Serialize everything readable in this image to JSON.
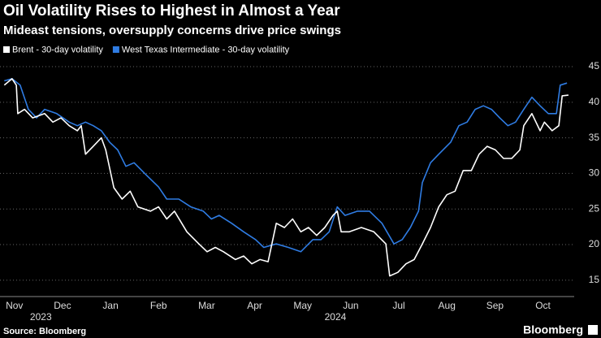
{
  "chart_data": {
    "type": "line",
    "title": "Oil Volatility Rises to Highest in Almost a Year",
    "subtitle": "Mideast tensions, oversupply concerns drive price swings",
    "source": "Source: Bloomberg",
    "brand": "Bloomberg",
    "grid": true,
    "xlim": [
      -0.3,
      11.65
    ],
    "xticks": [
      {
        "value": 0,
        "label": "Nov"
      },
      {
        "value": 1,
        "label": "Dec"
      },
      {
        "value": 2,
        "label": "Jan"
      },
      {
        "value": 3,
        "label": "Feb"
      },
      {
        "value": 4,
        "label": "Mar"
      },
      {
        "value": 5,
        "label": "Apr"
      },
      {
        "value": 6,
        "label": "May"
      },
      {
        "value": 7,
        "label": "Jun"
      },
      {
        "value": 8,
        "label": "Jul"
      },
      {
        "value": 9,
        "label": "Aug"
      },
      {
        "value": 10,
        "label": "Sep"
      },
      {
        "value": 11,
        "label": "Oct"
      }
    ],
    "xticks_secondary": [
      {
        "value": 0.55,
        "label": "2023"
      },
      {
        "value": 6.68,
        "label": "2024"
      }
    ],
    "ylim": [
      12.7,
      45.8
    ],
    "yticks": [
      15,
      20,
      25,
      30,
      35,
      40,
      45
    ],
    "series": [
      {
        "name": "Brent - 30-day volatility",
        "color": "#ffffff",
        "x": [
          -0.21,
          -0.05,
          0.04,
          0.07,
          0.21,
          0.38,
          0.63,
          0.8,
          0.97,
          1.14,
          1.31,
          1.39,
          1.48,
          1.64,
          1.81,
          1.9,
          2.07,
          2.24,
          2.41,
          2.57,
          2.83,
          3.0,
          3.17,
          3.33,
          3.59,
          3.84,
          4.01,
          4.18,
          4.35,
          4.6,
          4.77,
          4.94,
          5.11,
          5.28,
          5.45,
          5.62,
          5.79,
          5.96,
          6.12,
          6.29,
          6.46,
          6.63,
          6.72,
          6.8,
          6.97,
          7.22,
          7.48,
          7.73,
          7.81,
          7.98,
          8.15,
          8.32,
          8.49,
          8.66,
          8.83,
          9.0,
          9.17,
          9.34,
          9.51,
          9.67,
          9.84,
          10.01,
          10.18,
          10.35,
          10.52,
          10.6,
          10.77,
          10.94,
          11.03,
          11.19,
          11.33,
          11.4,
          11.53
        ],
        "values": [
          42.4,
          43.3,
          42.4,
          38.4,
          39.0,
          37.8,
          38.4,
          37.2,
          37.8,
          36.7,
          36.0,
          36.7,
          32.7,
          33.8,
          35.0,
          33.3,
          28.0,
          26.4,
          27.5,
          25.3,
          24.7,
          25.3,
          23.6,
          24.7,
          21.8,
          20.1,
          19.0,
          19.6,
          19.0,
          17.9,
          18.4,
          17.3,
          17.9,
          17.6,
          23.0,
          22.4,
          23.6,
          21.8,
          22.4,
          21.3,
          22.4,
          24.1,
          24.7,
          21.8,
          21.8,
          22.4,
          21.8,
          20.1,
          15.6,
          16.1,
          17.3,
          17.9,
          20.1,
          22.4,
          25.3,
          27.0,
          27.5,
          30.4,
          30.4,
          32.7,
          33.8,
          33.3,
          32.1,
          32.1,
          33.3,
          36.7,
          38.4,
          36.0,
          37.2,
          36.0,
          36.7,
          40.9,
          41.0
        ]
      },
      {
        "name": "West Texas Intermediate - 30-day volatility",
        "color": "#2f7ce3",
        "x": [
          -0.21,
          -0.05,
          0.12,
          0.29,
          0.46,
          0.63,
          0.88,
          1.14,
          1.31,
          1.48,
          1.64,
          1.81,
          1.98,
          2.15,
          2.32,
          2.49,
          2.74,
          3.0,
          3.17,
          3.42,
          3.67,
          3.93,
          4.1,
          4.26,
          4.52,
          4.77,
          5.02,
          5.19,
          5.45,
          5.7,
          5.96,
          6.21,
          6.38,
          6.55,
          6.72,
          6.88,
          7.14,
          7.39,
          7.65,
          7.9,
          8.07,
          8.24,
          8.41,
          8.49,
          8.66,
          8.83,
          9.08,
          9.25,
          9.42,
          9.59,
          9.76,
          9.93,
          10.1,
          10.27,
          10.43,
          10.6,
          10.77,
          10.94,
          11.11,
          11.28,
          11.36,
          11.5
        ],
        "values": [
          43.0,
          43.3,
          42.4,
          39.0,
          37.8,
          39.0,
          38.4,
          37.2,
          36.7,
          37.2,
          36.7,
          36.0,
          34.4,
          33.3,
          31.0,
          31.5,
          29.8,
          28.1,
          26.4,
          26.4,
          25.3,
          24.7,
          23.6,
          24.1,
          23.0,
          21.8,
          20.7,
          19.6,
          20.1,
          19.6,
          19.0,
          20.7,
          20.7,
          21.8,
          25.3,
          24.1,
          24.7,
          24.7,
          23.0,
          20.1,
          20.7,
          22.4,
          24.7,
          28.7,
          31.5,
          32.7,
          34.4,
          36.7,
          37.2,
          39.0,
          39.5,
          39.0,
          37.8,
          36.7,
          37.2,
          39.0,
          40.7,
          39.5,
          38.4,
          38.4,
          42.4,
          42.7
        ]
      }
    ]
  }
}
